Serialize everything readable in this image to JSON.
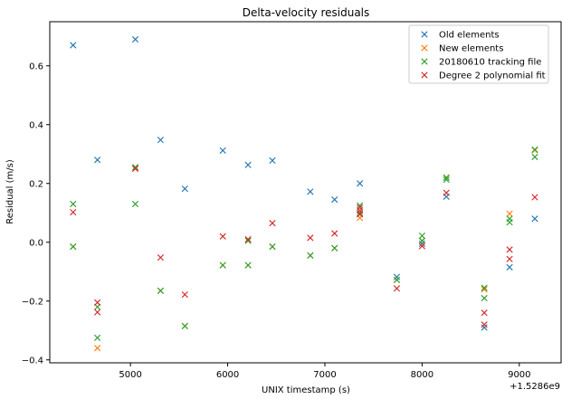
{
  "chart_data": {
    "type": "scatter",
    "title": "Delta-velocity residuals",
    "xlabel": "UNIX timestamp (s)",
    "ylabel": "Residual (m/s)",
    "x_offset_label": "+1.5286e9",
    "xlim": [
      4170,
      9430
    ],
    "ylim": [
      -0.41,
      0.75
    ],
    "x_ticks": [
      5000,
      6000,
      7000,
      8000,
      9000
    ],
    "x_tick_labels": [
      "5000",
      "6000",
      "7000",
      "8000",
      "9000"
    ],
    "y_ticks": [
      -0.4,
      -0.2,
      0.0,
      0.2,
      0.4,
      0.6
    ],
    "y_tick_labels": [
      "−0.4",
      "−0.2",
      "0.0",
      "0.2",
      "0.4",
      "0.6"
    ],
    "grid": false,
    "legend_position": "top-right",
    "marker": "x",
    "series": [
      {
        "name": "Old elements",
        "color": "#1f77b4",
        "points": [
          [
            4410,
            0.67
          ],
          [
            4660,
            0.28
          ],
          [
            5050,
            0.69
          ],
          [
            5310,
            0.348
          ],
          [
            5560,
            0.182
          ],
          [
            5950,
            0.312
          ],
          [
            6210,
            0.263
          ],
          [
            6460,
            0.278
          ],
          [
            6850,
            0.172
          ],
          [
            7100,
            0.145
          ],
          [
            7360,
            0.2
          ],
          [
            7740,
            -0.118
          ],
          [
            8000,
            -0.005
          ],
          [
            8250,
            0.155
          ],
          [
            8640,
            -0.29
          ],
          [
            8900,
            -0.085
          ],
          [
            9160,
            0.08
          ]
        ]
      },
      {
        "name": "New elements",
        "color": "#ff7f0e",
        "points": [
          [
            4410,
            -0.015
          ],
          [
            4660,
            -0.36
          ],
          [
            5050,
            0.255
          ],
          [
            5310,
            -0.165
          ],
          [
            5560,
            -0.285
          ],
          [
            5950,
            -0.078
          ],
          [
            6210,
            -0.078
          ],
          [
            6460,
            -0.015
          ],
          [
            6850,
            -0.045
          ],
          [
            7100,
            -0.02
          ],
          [
            7360,
            0.083
          ],
          [
            7740,
            -0.128
          ],
          [
            8000,
            0.005
          ],
          [
            8250,
            0.22
          ],
          [
            8640,
            -0.16
          ],
          [
            8900,
            0.097
          ],
          [
            9160,
            0.313
          ]
        ]
      },
      {
        "name": "20180610 tracking file",
        "color": "#2ca02c",
        "points": [
          [
            4410,
            0.13
          ],
          [
            4410,
            -0.015
          ],
          [
            4660,
            -0.22
          ],
          [
            4660,
            -0.325
          ],
          [
            5050,
            0.13
          ],
          [
            5050,
            0.255
          ],
          [
            5310,
            -0.165
          ],
          [
            5560,
            -0.285
          ],
          [
            5950,
            -0.078
          ],
          [
            6210,
            -0.078
          ],
          [
            6210,
            0.005
          ],
          [
            6460,
            -0.015
          ],
          [
            6850,
            -0.045
          ],
          [
            7100,
            -0.02
          ],
          [
            7360,
            0.125
          ],
          [
            7360,
            0.1
          ],
          [
            7740,
            -0.128
          ],
          [
            8000,
            0.022
          ],
          [
            8000,
            0.005
          ],
          [
            8250,
            0.22
          ],
          [
            8250,
            0.213
          ],
          [
            8640,
            -0.155
          ],
          [
            8640,
            -0.19
          ],
          [
            8900,
            0.08
          ],
          [
            8900,
            0.068
          ],
          [
            9160,
            0.315
          ],
          [
            9160,
            0.29
          ]
        ]
      },
      {
        "name": "Degree 2 polynomial fit",
        "color": "#d62728",
        "points": [
          [
            4410,
            0.102
          ],
          [
            4660,
            -0.205
          ],
          [
            4660,
            -0.238
          ],
          [
            5050,
            0.25
          ],
          [
            5310,
            -0.052
          ],
          [
            5560,
            -0.178
          ],
          [
            5950,
            0.02
          ],
          [
            6210,
            0.01
          ],
          [
            6460,
            0.065
          ],
          [
            6850,
            0.015
          ],
          [
            7100,
            0.03
          ],
          [
            7360,
            0.118
          ],
          [
            7360,
            0.108
          ],
          [
            7360,
            0.095
          ],
          [
            7740,
            -0.157
          ],
          [
            8000,
            -0.013
          ],
          [
            8250,
            0.168
          ],
          [
            8640,
            -0.24
          ],
          [
            8640,
            -0.28
          ],
          [
            8900,
            -0.025
          ],
          [
            8900,
            -0.057
          ],
          [
            9160,
            0.153
          ]
        ]
      }
    ]
  }
}
